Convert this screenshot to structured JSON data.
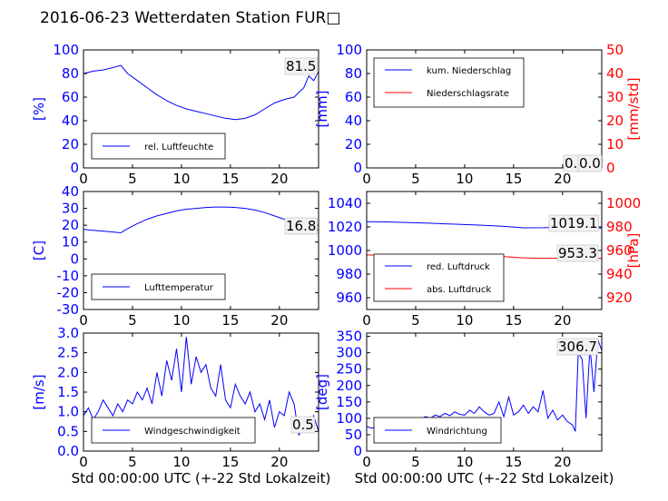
{
  "title": "2016-06-23 Wetterdaten Station FUR□",
  "xlabel": "Std 00:00:00 UTC (+-22 Std Lokalzeit)",
  "colors": {
    "primary": "#0000ff",
    "secondary": "#ff0000",
    "axis": "#000000",
    "legend_border": "#000000"
  },
  "chart_data": [
    {
      "id": "humidity",
      "type": "line",
      "xlim": [
        0,
        24
      ],
      "xticks": [
        0,
        5,
        10,
        15,
        20
      ],
      "ylim": [
        0,
        100
      ],
      "yticks": [
        0,
        20,
        40,
        60,
        80,
        100
      ],
      "ylabel": "[%]",
      "legend": {
        "location": "lower-left",
        "entries": [
          {
            "label": "rel. Luftfeuchte",
            "color": "#0000ff"
          }
        ]
      },
      "annotations": [
        {
          "text": "81.5",
          "color": "#000000"
        }
      ],
      "series": [
        {
          "name": "rel. Luftfeuchte",
          "color": "#0000ff",
          "x": [
            0,
            1,
            2,
            3,
            3.8,
            4.5,
            5.5,
            6.5,
            7.5,
            8.5,
            9.5,
            10.5,
            11.5,
            12.5,
            13.5,
            14.5,
            15.5,
            16.5,
            17.5,
            18.5,
            19.5,
            20.5,
            21.5,
            22.5,
            23,
            23.5,
            24
          ],
          "y": [
            80,
            82,
            83,
            85,
            87,
            80,
            74,
            68,
            62,
            57,
            53,
            50,
            48,
            46,
            44,
            42,
            41,
            42,
            45,
            50,
            55,
            58,
            60,
            68,
            78,
            74,
            81.5
          ]
        }
      ]
    },
    {
      "id": "precipitation",
      "type": "line",
      "xlim": [
        0,
        24
      ],
      "xticks": [
        0,
        5,
        10,
        15,
        20
      ],
      "ylim": [
        0,
        100
      ],
      "yticks": [
        0,
        20,
        40,
        60,
        80,
        100
      ],
      "ylabel": "[mm]",
      "y2lim": [
        0,
        50
      ],
      "y2ticks": [
        0,
        10,
        20,
        30,
        40,
        50
      ],
      "y2label": "[mm/std]",
      "legend": {
        "location": "upper-left",
        "entries": [
          {
            "label": "kum. Niederschlag",
            "color": "#0000ff"
          },
          {
            "label": "Niederschlagsrate",
            "color": "#ff0000"
          }
        ]
      },
      "annotations": [
        {
          "text": "0.0"
        },
        {
          "text": "0.0"
        }
      ],
      "series": [
        {
          "name": "kum. Niederschlag",
          "color": "#0000ff",
          "axis": "left",
          "x": [
            0,
            24
          ],
          "y": [
            0,
            0
          ]
        },
        {
          "name": "Niederschlagsrate",
          "color": "#ff0000",
          "axis": "right",
          "x": [
            0,
            24
          ],
          "y": [
            0,
            0
          ]
        }
      ]
    },
    {
      "id": "temperature",
      "type": "line",
      "xlim": [
        0,
        24
      ],
      "xticks": [
        0,
        5,
        10,
        15,
        20
      ],
      "ylim": [
        -30,
        40
      ],
      "yticks": [
        -30,
        -20,
        -10,
        0,
        10,
        20,
        30,
        40
      ],
      "ylabel": "[C]",
      "legend": {
        "location": "lower-left",
        "entries": [
          {
            "label": "Lufttemperatur",
            "color": "#0000ff"
          }
        ]
      },
      "annotations": [
        {
          "text": "16.8"
        }
      ],
      "series": [
        {
          "name": "Lufttemperatur",
          "color": "#0000ff",
          "x": [
            0,
            1,
            2,
            3,
            3.8,
            4.5,
            5.5,
            6.5,
            7.5,
            8.5,
            9.5,
            10.5,
            11.5,
            12.5,
            13.5,
            14.5,
            15.5,
            16.5,
            17.5,
            18.5,
            19.5,
            20.5,
            21.5,
            22.5,
            23.5,
            24
          ],
          "y": [
            17.5,
            17,
            16.5,
            16,
            15.5,
            18,
            21,
            23.5,
            25.5,
            27,
            28.5,
            29.5,
            30,
            30.5,
            30.8,
            30.8,
            30.5,
            30,
            29,
            27.5,
            25.5,
            23.5,
            22.5,
            22,
            18.5,
            16.8
          ]
        }
      ]
    },
    {
      "id": "pressure",
      "type": "line",
      "xlim": [
        0,
        24
      ],
      "xticks": [
        0,
        5,
        10,
        15,
        20
      ],
      "ylim": [
        950,
        1050
      ],
      "yticks": [
        960,
        980,
        1000,
        1020,
        1040
      ],
      "y2lim": [
        910,
        1010
      ],
      "y2ticks": [
        920,
        940,
        960,
        980,
        1000
      ],
      "y2label": "[hPa]",
      "legend": {
        "location": "lower-left",
        "entries": [
          {
            "label": "red. Luftdruck",
            "color": "#0000ff"
          },
          {
            "label": "abs. Luftdruck",
            "color": "#ff0000"
          }
        ]
      },
      "annotations": [
        {
          "text": "1019.1"
        },
        {
          "text": "953.3"
        }
      ],
      "series": [
        {
          "name": "red. Luftdruck",
          "color": "#0000ff",
          "axis": "left",
          "x": [
            0,
            2,
            4,
            6,
            8,
            10,
            12,
            14,
            16,
            18,
            20,
            22,
            24
          ],
          "y": [
            1024.5,
            1024.2,
            1023.8,
            1023.2,
            1022.6,
            1022,
            1021.3,
            1020.5,
            1019.2,
            1019.3,
            1019.8,
            1019.4,
            1019.1
          ]
        },
        {
          "name": "abs. Luftdruck",
          "color": "#ff0000",
          "axis": "right",
          "x": [
            0,
            2,
            4,
            6,
            8,
            10,
            12,
            14,
            16,
            18,
            20,
            22,
            24
          ],
          "y": [
            956.2,
            955.8,
            955.4,
            955.4,
            955.6,
            955.6,
            955.3,
            954.8,
            953.8,
            953.4,
            953.5,
            953.4,
            953.3
          ]
        }
      ]
    },
    {
      "id": "wind_speed",
      "type": "line",
      "xlim": [
        0,
        24
      ],
      "xticks": [
        0,
        5,
        10,
        15,
        20
      ],
      "ylim": [
        0,
        3
      ],
      "yticks": [
        0.0,
        0.5,
        1.0,
        1.5,
        2.0,
        2.5,
        3.0
      ],
      "ylabel": "[m/s]",
      "legend": {
        "location": "lower-left",
        "entries": [
          {
            "label": "Windgeschwindigkeit",
            "color": "#0000ff"
          }
        ]
      },
      "annotations": [
        {
          "text": "0.5"
        }
      ],
      "series": [
        {
          "name": "Windgeschwindigkeit",
          "color": "#0000ff",
          "x": [
            0,
            0.5,
            1,
            1.5,
            2,
            2.5,
            3,
            3.5,
            4,
            4.5,
            5,
            5.5,
            6,
            6.5,
            7,
            7.5,
            8,
            8.5,
            9,
            9.5,
            10,
            10.5,
            11,
            11.5,
            12,
            12.5,
            13,
            13.5,
            14,
            14.5,
            15,
            15.5,
            16,
            16.5,
            17,
            17.5,
            18,
            18.5,
            19,
            19.5,
            20,
            20.5,
            21,
            21.5,
            22,
            22.5,
            23,
            23.5,
            24
          ],
          "y": [
            0.9,
            1.1,
            0.8,
            1.0,
            1.3,
            1.1,
            0.9,
            1.2,
            1.0,
            1.3,
            1.2,
            1.5,
            1.3,
            1.6,
            1.2,
            2.0,
            1.4,
            2.3,
            1.8,
            2.6,
            1.5,
            2.9,
            1.7,
            2.4,
            2.0,
            2.2,
            1.6,
            1.4,
            2.2,
            1.3,
            1.1,
            1.7,
            1.4,
            1.2,
            1.5,
            1.0,
            1.2,
            0.8,
            1.3,
            0.6,
            1.0,
            0.9,
            1.5,
            1.2,
            0.4,
            0.8,
            0.6,
            0.9,
            0.5
          ]
        }
      ]
    },
    {
      "id": "wind_direction",
      "type": "line",
      "xlim": [
        0,
        24
      ],
      "xticks": [
        0,
        5,
        10,
        15,
        20
      ],
      "ylim": [
        0,
        360
      ],
      "yticks": [
        0,
        50,
        100,
        150,
        200,
        250,
        300,
        350
      ],
      "ylabel": "[deg]",
      "legend": {
        "location": "lower-left",
        "entries": [
          {
            "label": "Windrichtung",
            "color": "#0000ff"
          }
        ]
      },
      "annotations": [
        {
          "text": "306.7"
        }
      ],
      "series": [
        {
          "name": "Windrichtung",
          "color": "#0000ff",
          "x": [
            0,
            0.5,
            1,
            1.5,
            2,
            2.5,
            3,
            3.5,
            4,
            4.5,
            5,
            5.5,
            6,
            6.5,
            7,
            7.5,
            8,
            8.5,
            9,
            9.5,
            10,
            10.5,
            11,
            11.5,
            12,
            12.5,
            13,
            13.5,
            14,
            14.5,
            15,
            15.5,
            16,
            16.5,
            17,
            17.5,
            18,
            18.5,
            19,
            19.5,
            20,
            20.5,
            21,
            21.3,
            21.6,
            22,
            22.4,
            22.8,
            23.2,
            23.6,
            24
          ],
          "y": [
            75,
            70,
            72,
            80,
            75,
            85,
            80,
            90,
            92,
            95,
            100,
            98,
            105,
            100,
            110,
            105,
            115,
            108,
            120,
            112,
            110,
            125,
            115,
            135,
            120,
            110,
            115,
            150,
            105,
            165,
            110,
            120,
            140,
            115,
            135,
            120,
            185,
            100,
            125,
            95,
            110,
            90,
            80,
            60,
            300,
            280,
            100,
            320,
            180,
            340,
            307
          ]
        }
      ]
    }
  ]
}
